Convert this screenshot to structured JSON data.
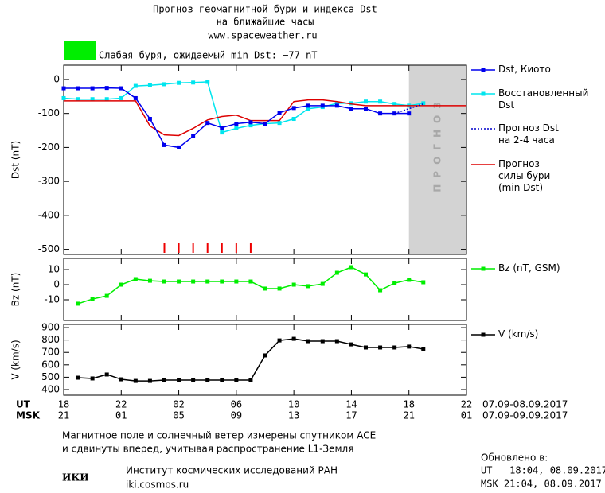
{
  "header": {
    "title": [
      "Прогноз геомагнитной бури и индекса Dst",
      "на ближайшие часы"
    ],
    "url": "www.spaceweather.ru",
    "status_color": "#00ee00",
    "status": "Слабая буря, ожидаемый min Dst: −77 nT"
  },
  "chart_data": [
    {
      "type": "line",
      "y_label": "Dst (nT)",
      "xlim": [
        0,
        28
      ],
      "xticks": [
        0,
        4,
        8,
        12,
        16,
        20,
        24,
        28
      ],
      "ylim": [
        -515,
        42
      ],
      "yticks": [
        0,
        -100,
        -200,
        -300,
        -400,
        -500
      ],
      "forecast_region": [
        24,
        28
      ],
      "forecast_label": "ПРОГНОЗ",
      "forecast_color": "#d3d3d3",
      "storm_hours": [
        7,
        8,
        9,
        10,
        11,
        12,
        13
      ],
      "storm_color": "#ee0000",
      "legend": "right",
      "series": [
        {
          "name": "Восстановленный\nDst",
          "color": "#00e5ee",
          "marker": "square",
          "dash": false,
          "x": [
            0,
            1,
            2,
            3,
            4,
            5,
            6,
            7,
            8,
            9,
            10,
            11,
            12,
            13,
            14,
            15,
            16,
            17,
            18,
            19,
            20,
            21,
            22,
            23,
            24,
            25
          ],
          "values": [
            -55,
            -58,
            -58,
            -58,
            -55,
            -19,
            -17,
            -14,
            -10,
            -9,
            -7,
            -156,
            -144,
            -135,
            -130,
            -128,
            -116,
            -86,
            -81,
            -70,
            -70,
            -65,
            -65,
            -72,
            -77,
            -70
          ]
        },
        {
          "name": "Прогноз\nсилы бури\n(min Dst)",
          "color": "#dd0000",
          "marker": "none",
          "dash": false,
          "x": [
            0,
            5,
            6,
            7,
            8,
            9,
            10,
            11,
            12,
            13,
            14,
            15,
            16,
            17,
            18,
            19,
            20,
            21,
            22,
            23,
            24,
            28
          ],
          "values": [
            -63,
            -63,
            -137,
            -163,
            -165,
            -144,
            -119,
            -109,
            -105,
            -121,
            -121,
            -121,
            -65,
            -60,
            -60,
            -65,
            -72,
            -77,
            -77,
            -77,
            -77,
            -77
          ]
        },
        {
          "name": "Dst, Киото",
          "color": "#0000ee",
          "marker": "square",
          "dash": false,
          "x": [
            0,
            1,
            2,
            3,
            4,
            5,
            6,
            7,
            8,
            9,
            10,
            11,
            12,
            13,
            14,
            15,
            16,
            17,
            18,
            19,
            20,
            21,
            22,
            23,
            24
          ],
          "values": [
            -26,
            -26,
            -26,
            -25,
            -26,
            -55,
            -116,
            -193,
            -200,
            -167,
            -128,
            -142,
            -130,
            -126,
            -130,
            -98,
            -84,
            -77,
            -77,
            -77,
            -86,
            -86,
            -100,
            -100,
            -100
          ]
        },
        {
          "name": "Прогноз Dst\nна 2-4 часа",
          "color": "#0000cc",
          "marker": "none",
          "dash": true,
          "x": [
            23,
            24,
            25
          ],
          "values": [
            -100,
            -86,
            -72
          ]
        }
      ]
    },
    {
      "type": "line",
      "y_label": "Bz (nT)",
      "xlim": [
        0,
        28
      ],
      "xticks": [
        0,
        4,
        8,
        12,
        16,
        20,
        24,
        28
      ],
      "ylim": [
        -23.7,
        17.4
      ],
      "yticks": [
        10,
        0,
        -10
      ],
      "legend": "right",
      "series": [
        {
          "name": "Bz (nT, GSM)",
          "color": "#00ee00",
          "marker": "square",
          "dash": false,
          "x": [
            1,
            2,
            3,
            4,
            5,
            6,
            7,
            8,
            9,
            10,
            11,
            12,
            13,
            14,
            15,
            16,
            17,
            18,
            19,
            20,
            21,
            22,
            23,
            24,
            25
          ],
          "values": [
            -12.6,
            -9.5,
            -7.4,
            0,
            3.7,
            2.6,
            2.1,
            2.1,
            2.1,
            2.1,
            2.1,
            2.1,
            2.1,
            -2.6,
            -2.6,
            0,
            -1,
            0.5,
            7.9,
            11.6,
            6.8,
            -3.7,
            1,
            3.2,
            1.6
          ]
        }
      ]
    },
    {
      "type": "line",
      "y_label": "V (km/s)",
      "xlim": [
        0,
        28
      ],
      "xticks": [
        {
          "value": 0,
          "label": "18"
        },
        {
          "value": 4,
          "label": "22"
        },
        {
          "value": 8,
          "label": "02"
        },
        {
          "value": 12,
          "label": "06"
        },
        {
          "value": 16,
          "label": "10"
        },
        {
          "value": 20,
          "label": "14"
        },
        {
          "value": 24,
          "label": "18"
        },
        {
          "value": 28,
          "label": "22"
        }
      ],
      "x2ticks": [
        {
          "value": 0,
          "label": "21"
        },
        {
          "value": 4,
          "label": "01"
        },
        {
          "value": 8,
          "label": "05"
        },
        {
          "value": 12,
          "label": "09"
        },
        {
          "value": 16,
          "label": "13"
        },
        {
          "value": 20,
          "label": "17"
        },
        {
          "value": 24,
          "label": "21"
        },
        {
          "value": 28,
          "label": "01"
        }
      ],
      "x_label": "UT",
      "x2_label": "MSK",
      "x_range_label": "07.09-08.09.2017",
      "x2_range_label": "07.09-09.09.2017",
      "ylim": [
        355,
        926
      ],
      "yticks": [
        400,
        500,
        600,
        700,
        800,
        900
      ],
      "legend": "right",
      "series": [
        {
          "name": "V (km/s)",
          "color": "#000000",
          "marker": "square",
          "dash": false,
          "x": [
            1,
            2,
            3,
            4,
            5,
            6,
            7,
            8,
            9,
            10,
            11,
            12,
            13,
            14,
            15,
            16,
            17,
            18,
            19,
            20,
            21,
            22,
            23,
            24,
            25
          ],
          "values": [
            496,
            490,
            522,
            483,
            470,
            470,
            477,
            477,
            477,
            477,
            477,
            477,
            477,
            676,
            797,
            810,
            791,
            791,
            791,
            765,
            740,
            740,
            740,
            747,
            727
          ]
        }
      ]
    }
  ],
  "footer": {
    "note": [
      "Магнитное поле и солнечный ветер измерены спутником ACE",
      "и сдвинуты вперед, учитывая распространение L1-Земля"
    ],
    "logo": "ИКИ",
    "institute": "Институт космических исследований РАН",
    "url": "iki.cosmos.ru",
    "updated_label": "Обновлено в:",
    "updated_ut": "UT   18:04, 08.09.2017",
    "updated_msk": "MSK 21:04, 08.09.2017"
  }
}
